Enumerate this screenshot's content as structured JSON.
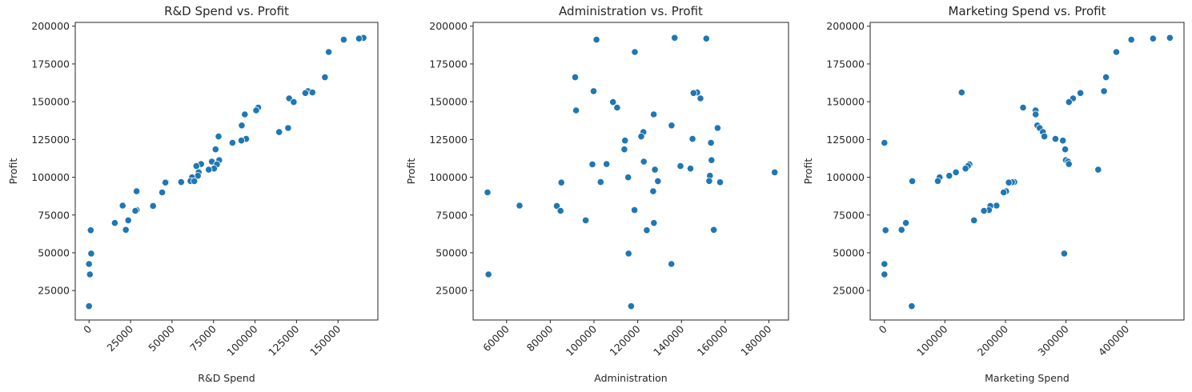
{
  "chart_data": [
    {
      "type": "scatter",
      "title": "R&D Spend vs. Profit",
      "xlabel": "R&D Spend",
      "ylabel": "Profit",
      "xlim": [
        -8300,
        174000
      ],
      "ylim": [
        5500,
        202500
      ],
      "xticks": [
        0,
        25000,
        50000,
        75000,
        100000,
        125000,
        150000
      ],
      "yticks": [
        25000,
        50000,
        75000,
        100000,
        125000,
        150000,
        175000,
        200000
      ],
      "color": "#1f77b4",
      "points": [
        {
          "x": 165349,
          "y": 192262
        },
        {
          "x": 162598,
          "y": 191792
        },
        {
          "x": 153442,
          "y": 191050
        },
        {
          "x": 144372,
          "y": 182902
        },
        {
          "x": 142107,
          "y": 166188
        },
        {
          "x": 131877,
          "y": 156991
        },
        {
          "x": 134615,
          "y": 156123
        },
        {
          "x": 130298,
          "y": 155753
        },
        {
          "x": 120543,
          "y": 152212
        },
        {
          "x": 123335,
          "y": 149760
        },
        {
          "x": 101913,
          "y": 146122
        },
        {
          "x": 100672,
          "y": 144259
        },
        {
          "x": 93864,
          "y": 141586
        },
        {
          "x": 91992,
          "y": 134307
        },
        {
          "x": 119943,
          "y": 132603
        },
        {
          "x": 114524,
          "y": 129917
        },
        {
          "x": 78013,
          "y": 126993
        },
        {
          "x": 94657,
          "y": 125371
        },
        {
          "x": 91749,
          "y": 124267
        },
        {
          "x": 86420,
          "y": 122777
        },
        {
          "x": 76254,
          "y": 118474
        },
        {
          "x": 78389,
          "y": 111314
        },
        {
          "x": 73995,
          "y": 110353
        },
        {
          "x": 67533,
          "y": 108734
        },
        {
          "x": 77044,
          "y": 108552
        },
        {
          "x": 64665,
          "y": 107404
        },
        {
          "x": 75329,
          "y": 105734
        },
        {
          "x": 72108,
          "y": 105008
        },
        {
          "x": 66052,
          "y": 103282
        },
        {
          "x": 65605,
          "y": 101004
        },
        {
          "x": 61994,
          "y": 99938
        },
        {
          "x": 61136,
          "y": 97484
        },
        {
          "x": 63409,
          "y": 97428
        },
        {
          "x": 55494,
          "y": 96779
        },
        {
          "x": 46426,
          "y": 96712
        },
        {
          "x": 46014,
          "y": 96480
        },
        {
          "x": 28664,
          "y": 90708
        },
        {
          "x": 44070,
          "y": 89950
        },
        {
          "x": 20230,
          "y": 81230
        },
        {
          "x": 38558,
          "y": 81006
        },
        {
          "x": 28754,
          "y": 78240
        },
        {
          "x": 27893,
          "y": 77798
        },
        {
          "x": 23641,
          "y": 71498
        },
        {
          "x": 15506,
          "y": 69759
        },
        {
          "x": 22178,
          "y": 65201
        },
        {
          "x": 1001,
          "y": 64927
        },
        {
          "x": 1315,
          "y": 49491
        },
        {
          "x": 0,
          "y": 42560
        },
        {
          "x": 542,
          "y": 35673
        },
        {
          "x": 0,
          "y": 14681
        }
      ]
    },
    {
      "type": "scatter",
      "title": "Administration vs. Profit",
      "xlabel": "Administration",
      "ylabel": "Profit",
      "xlim": [
        44700,
        189000
      ],
      "ylim": [
        5500,
        202500
      ],
      "xticks": [
        60000,
        80000,
        100000,
        120000,
        140000,
        160000,
        180000
      ],
      "yticks": [
        25000,
        50000,
        75000,
        100000,
        125000,
        150000,
        175000,
        200000
      ],
      "color": "#1f77b4",
      "points": [
        {
          "x": 136898,
          "y": 192262
        },
        {
          "x": 151377,
          "y": 191792
        },
        {
          "x": 101146,
          "y": 191050
        },
        {
          "x": 118672,
          "y": 182902
        },
        {
          "x": 91392,
          "y": 166188
        },
        {
          "x": 99815,
          "y": 156991
        },
        {
          "x": 147199,
          "y": 156123
        },
        {
          "x": 145530,
          "y": 155753
        },
        {
          "x": 148719,
          "y": 152212
        },
        {
          "x": 108679,
          "y": 149760
        },
        {
          "x": 110594,
          "y": 146122
        },
        {
          "x": 91791,
          "y": 144259
        },
        {
          "x": 127320,
          "y": 141586
        },
        {
          "x": 135495,
          "y": 134307
        },
        {
          "x": 156547,
          "y": 132603
        },
        {
          "x": 122617,
          "y": 129917
        },
        {
          "x": 121598,
          "y": 126993
        },
        {
          "x": 145078,
          "y": 125371
        },
        {
          "x": 114176,
          "y": 124267
        },
        {
          "x": 153514,
          "y": 122777
        },
        {
          "x": 113867,
          "y": 118474
        },
        {
          "x": 153774,
          "y": 111314
        },
        {
          "x": 122783,
          "y": 110353
        },
        {
          "x": 105751,
          "y": 108734
        },
        {
          "x": 99282,
          "y": 108552
        },
        {
          "x": 139553,
          "y": 107404
        },
        {
          "x": 144136,
          "y": 105734
        },
        {
          "x": 127865,
          "y": 105008
        },
        {
          "x": 182646,
          "y": 103282
        },
        {
          "x": 153032,
          "y": 101004
        },
        {
          "x": 115642,
          "y": 99938
        },
        {
          "x": 152702,
          "y": 97484
        },
        {
          "x": 129220,
          "y": 97428
        },
        {
          "x": 103057,
          "y": 96779
        },
        {
          "x": 157694,
          "y": 96712
        },
        {
          "x": 85047,
          "y": 96480
        },
        {
          "x": 127056,
          "y": 90708
        },
        {
          "x": 51283,
          "y": 89950
        },
        {
          "x": 65948,
          "y": 81230
        },
        {
          "x": 82982,
          "y": 81006
        },
        {
          "x": 118546,
          "y": 78240
        },
        {
          "x": 84711,
          "y": 77798
        },
        {
          "x": 96189,
          "y": 71498
        },
        {
          "x": 127382,
          "y": 69759
        },
        {
          "x": 154806,
          "y": 65201
        },
        {
          "x": 124153,
          "y": 64927
        },
        {
          "x": 115816,
          "y": 49491
        },
        {
          "x": 135427,
          "y": 42560
        },
        {
          "x": 51743,
          "y": 35673
        },
        {
          "x": 116984,
          "y": 14681
        }
      ]
    },
    {
      "type": "scatter",
      "title": "Marketing Spend vs. Profit",
      "xlabel": "Marketing Spend",
      "ylabel": "Profit",
      "xlim": [
        -23500,
        495000
      ],
      "ylim": [
        5500,
        202500
      ],
      "xticks": [
        0,
        100000,
        200000,
        300000,
        400000
      ],
      "yticks": [
        25000,
        50000,
        75000,
        100000,
        125000,
        150000,
        175000,
        200000
      ],
      "color": "#1f77b4",
      "points": [
        {
          "x": 471784,
          "y": 192262
        },
        {
          "x": 443899,
          "y": 191792
        },
        {
          "x": 407935,
          "y": 191050
        },
        {
          "x": 383200,
          "y": 182902
        },
        {
          "x": 366168,
          "y": 166188
        },
        {
          "x": 362861,
          "y": 156991
        },
        {
          "x": 127717,
          "y": 156123
        },
        {
          "x": 323877,
          "y": 155753
        },
        {
          "x": 311613,
          "y": 152212
        },
        {
          "x": 304982,
          "y": 149760
        },
        {
          "x": 229161,
          "y": 146122
        },
        {
          "x": 249745,
          "y": 144259
        },
        {
          "x": 249839,
          "y": 141586
        },
        {
          "x": 252665,
          "y": 134307
        },
        {
          "x": 256513,
          "y": 132603
        },
        {
          "x": 261776,
          "y": 129917
        },
        {
          "x": 264346,
          "y": 126993
        },
        {
          "x": 282574,
          "y": 125371
        },
        {
          "x": 294919,
          "y": 124267
        },
        {
          "x": 0,
          "y": 122777
        },
        {
          "x": 298664,
          "y": 118474
        },
        {
          "x": 299737,
          "y": 111314
        },
        {
          "x": 303319,
          "y": 110353
        },
        {
          "x": 304769,
          "y": 108734
        },
        {
          "x": 140574,
          "y": 108552
        },
        {
          "x": 137962,
          "y": 107404
        },
        {
          "x": 134051,
          "y": 105734
        },
        {
          "x": 353184,
          "y": 105008
        },
        {
          "x": 118148,
          "y": 103282
        },
        {
          "x": 107138,
          "y": 101004
        },
        {
          "x": 91131,
          "y": 99938
        },
        {
          "x": 88218,
          "y": 97484
        },
        {
          "x": 46085,
          "y": 97428
        },
        {
          "x": 214635,
          "y": 96779
        },
        {
          "x": 210798,
          "y": 96712
        },
        {
          "x": 205518,
          "y": 96480
        },
        {
          "x": 201127,
          "y": 90708
        },
        {
          "x": 197029,
          "y": 89950
        },
        {
          "x": 185265,
          "y": 81230
        },
        {
          "x": 174999,
          "y": 81006
        },
        {
          "x": 172795,
          "y": 78240
        },
        {
          "x": 164471,
          "y": 77798
        },
        {
          "x": 148001,
          "y": 71498
        },
        {
          "x": 35534,
          "y": 69759
        },
        {
          "x": 28334,
          "y": 65201
        },
        {
          "x": 1904,
          "y": 64927
        },
        {
          "x": 297114,
          "y": 49491
        },
        {
          "x": 0,
          "y": 42560
        },
        {
          "x": 0,
          "y": 35673
        },
        {
          "x": 45173,
          "y": 14681
        }
      ]
    }
  ]
}
